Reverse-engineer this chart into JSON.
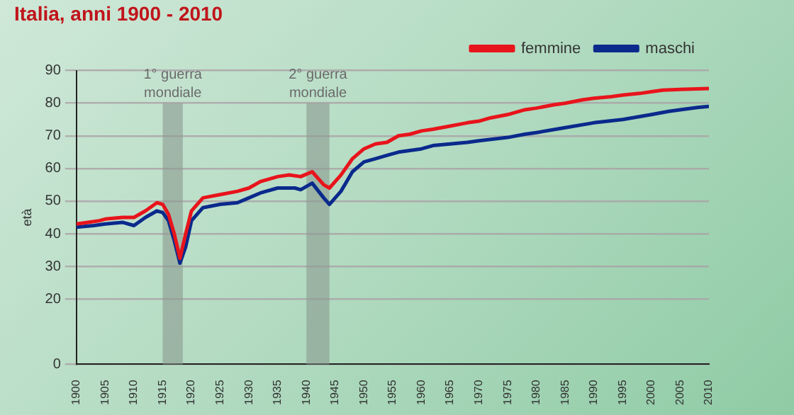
{
  "chart_data": {
    "type": "line",
    "title": "Italia, anni 1900 - 2010",
    "ylabel": "età",
    "ylim": [
      0,
      90
    ],
    "yticks": [
      0,
      20,
      30,
      40,
      50,
      60,
      70,
      80,
      90
    ],
    "xlim": [
      1900,
      2010
    ],
    "xticks": [
      1900,
      1905,
      1910,
      1915,
      1920,
      1925,
      1930,
      1935,
      1940,
      1945,
      1950,
      1955,
      1960,
      1965,
      1970,
      1975,
      1980,
      1985,
      1990,
      1995,
      2000,
      2005,
      2010
    ],
    "grid": "y",
    "legend": "top right",
    "marker": "none",
    "line_style": "solid",
    "bands": [
      {
        "axis": "x",
        "from": 1915,
        "to": 1918.5,
        "label": "1° guerra mondiale",
        "color": "#8a9a90"
      },
      {
        "axis": "x",
        "from": 1940,
        "to": 1944,
        "label": "2° guerra mondiale",
        "color": "#8a9a90"
      }
    ],
    "series": [
      {
        "name": "femmine",
        "color": "#e8141b",
        "x": [
          1900,
          1902,
          1904,
          1905,
          1908,
          1910,
          1912,
          1914,
          1915,
          1916,
          1917,
          1918,
          1919,
          1920,
          1922,
          1925,
          1928,
          1930,
          1932,
          1935,
          1937,
          1939,
          1941,
          1943,
          1944,
          1946,
          1948,
          1950,
          1952,
          1954,
          1956,
          1958,
          1960,
          1962,
          1965,
          1968,
          1970,
          1972,
          1975,
          1978,
          1980,
          1983,
          1985,
          1988,
          1990,
          1993,
          1995,
          1998,
          2000,
          2002,
          2005,
          2008,
          2010
        ],
        "values": [
          43,
          43.5,
          44,
          44.5,
          45,
          45,
          47,
          49.5,
          49,
          46,
          40,
          32.5,
          40,
          47,
          51,
          52,
          53,
          54,
          56,
          57.5,
          58,
          57.5,
          59,
          55,
          54,
          58,
          63,
          66,
          67.5,
          68,
          70,
          70.5,
          71.5,
          72,
          73,
          74,
          74.5,
          75.5,
          76.5,
          78,
          78.5,
          79.5,
          80,
          81,
          81.5,
          82,
          82.5,
          83,
          83.5,
          84,
          84.2,
          84.4,
          84.5
        ]
      },
      {
        "name": "maschi",
        "color": "#0a2a8c",
        "x": [
          1900,
          1903,
          1905,
          1908,
          1910,
          1912,
          1914,
          1915,
          1916,
          1917,
          1918,
          1919,
          1920,
          1922,
          1925,
          1928,
          1930,
          1932,
          1935,
          1938,
          1939,
          1941,
          1943,
          1944,
          1946,
          1948,
          1950,
          1952,
          1954,
          1956,
          1960,
          1962,
          1965,
          1968,
          1970,
          1975,
          1978,
          1980,
          1985,
          1990,
          1995,
          2000,
          2003,
          2005,
          2008,
          2010
        ],
        "values": [
          42,
          42.5,
          43,
          43.5,
          42.5,
          45,
          47,
          46.5,
          44,
          38,
          31,
          36,
          44,
          48,
          49,
          49.5,
          51,
          52.5,
          54,
          54,
          53.5,
          55.5,
          51,
          49,
          53,
          59,
          62,
          63,
          64,
          65,
          66,
          67,
          67.5,
          68,
          68.5,
          69.5,
          70.5,
          71,
          72.5,
          74,
          75,
          76.5,
          77.5,
          78,
          78.7,
          79
        ]
      }
    ]
  }
}
